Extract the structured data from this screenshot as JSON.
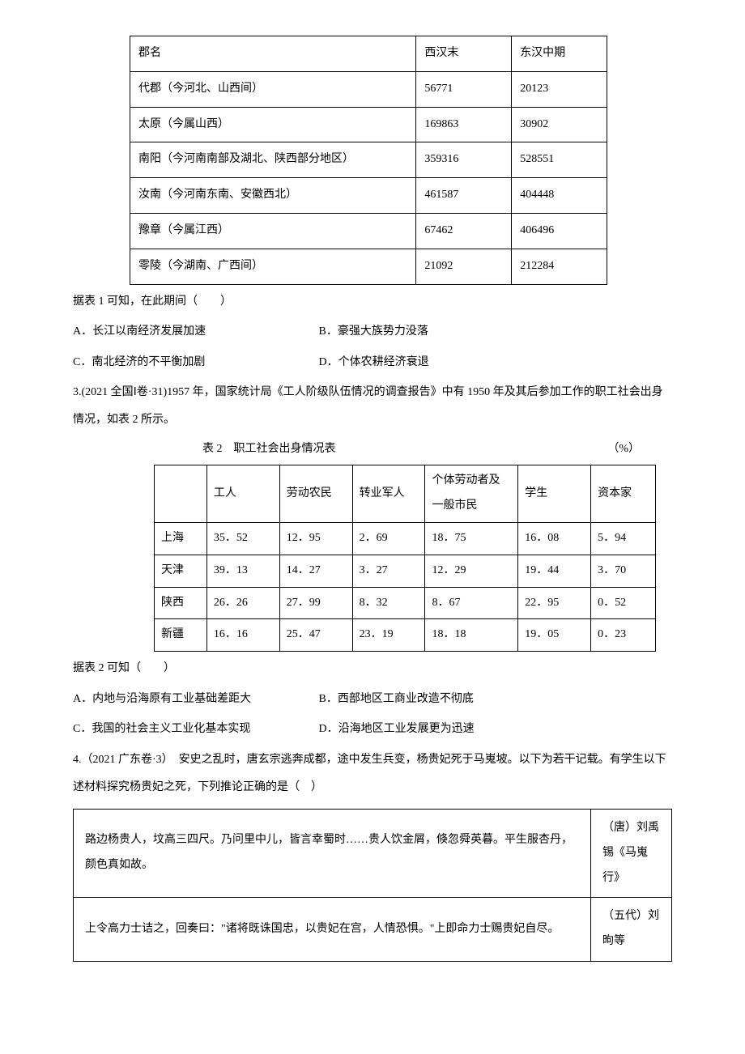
{
  "table1": {
    "headers": [
      "郡名",
      "西汉末",
      "东汉中期"
    ],
    "rows": [
      [
        "代郡（今河北、山西间）",
        "56771",
        "20123"
      ],
      [
        "太原（今属山西）",
        "169863",
        "30902"
      ],
      [
        "南阳（今河南南部及湖北、陕西部分地区）",
        "359316",
        "528551"
      ],
      [
        "汝南（今河南东南、安徽西北）",
        "461587",
        "404448"
      ],
      [
        "豫章（今属江西）",
        "67462",
        "406496"
      ],
      [
        "零陵（今湖南、广西间）",
        "21092",
        "212284"
      ]
    ]
  },
  "q2": {
    "stem": "据表 1 可知，在此期间（　　）",
    "opts": {
      "A": "A．长江以南经济发展加速",
      "B": "B．豪强大族势力没落",
      "C": "C．南北经济的不平衡加剧",
      "D": "D．个体农耕经济衰退"
    }
  },
  "q3": {
    "head": "3.(2021 全国Ⅰ卷·31)1957 年，国家统计局《工人阶级队伍情况的调查报告》中有 1950 年及其后参加工作的职工社会出身情况，如表 2 所示。",
    "caption_left": "表 2　职工社会出身情况表",
    "caption_right": "（%）",
    "stem": "据表 2 可知（　　）",
    "opts": {
      "A": "A．内地与沿海原有工业基础差距大",
      "B": "B．西部地区工商业改造不彻底",
      "C": "C．我国的社会主义工业化基本实现",
      "D": "D．沿海地区工业发展更为迅速"
    }
  },
  "table2": {
    "headers": [
      "",
      "工人",
      "劳动农民",
      "转业军人",
      "个体劳动者及一般市民",
      "学生",
      "资本家"
    ],
    "rows": [
      [
        "上海",
        "35．52",
        "12．95",
        "2．69",
        "18．75",
        "16．08",
        "5．94"
      ],
      [
        "天津",
        "39．13",
        "14．27",
        "3．27",
        "12．29",
        "19．44",
        "3．70"
      ],
      [
        "陕西",
        "26．26",
        "27．99",
        "8．32",
        "8．67",
        "22．95",
        "0．52"
      ],
      [
        "新疆",
        "16．16",
        "25．47",
        "23．19",
        "18．18",
        "19．05",
        "0．23"
      ]
    ]
  },
  "q4": {
    "head": "4.（2021 广东卷·3）　安史之乱时，唐玄宗逃奔成都，途中发生兵变，杨贵妃死于马嵬坡。以下为若干记载。有学生以下述材料探究杨贵妃之死，下列推论正确的是（　）"
  },
  "table3": {
    "rows": [
      {
        "text": "路边杨贵人，坟高三四尺。乃问里中儿，皆言幸蜀时……贵人饮金屑，倏忽舜英暮。平生服杏丹，颜色真如故。",
        "source": "（唐）刘禹锡《马嵬行》"
      },
      {
        "text": "上令高力士诘之，回奏曰：\"诸将既诛国忠，以贵妃在宫，人情恐惧。\"上即命力士赐贵妃自尽。",
        "source": "（五代）刘昫等"
      }
    ]
  }
}
